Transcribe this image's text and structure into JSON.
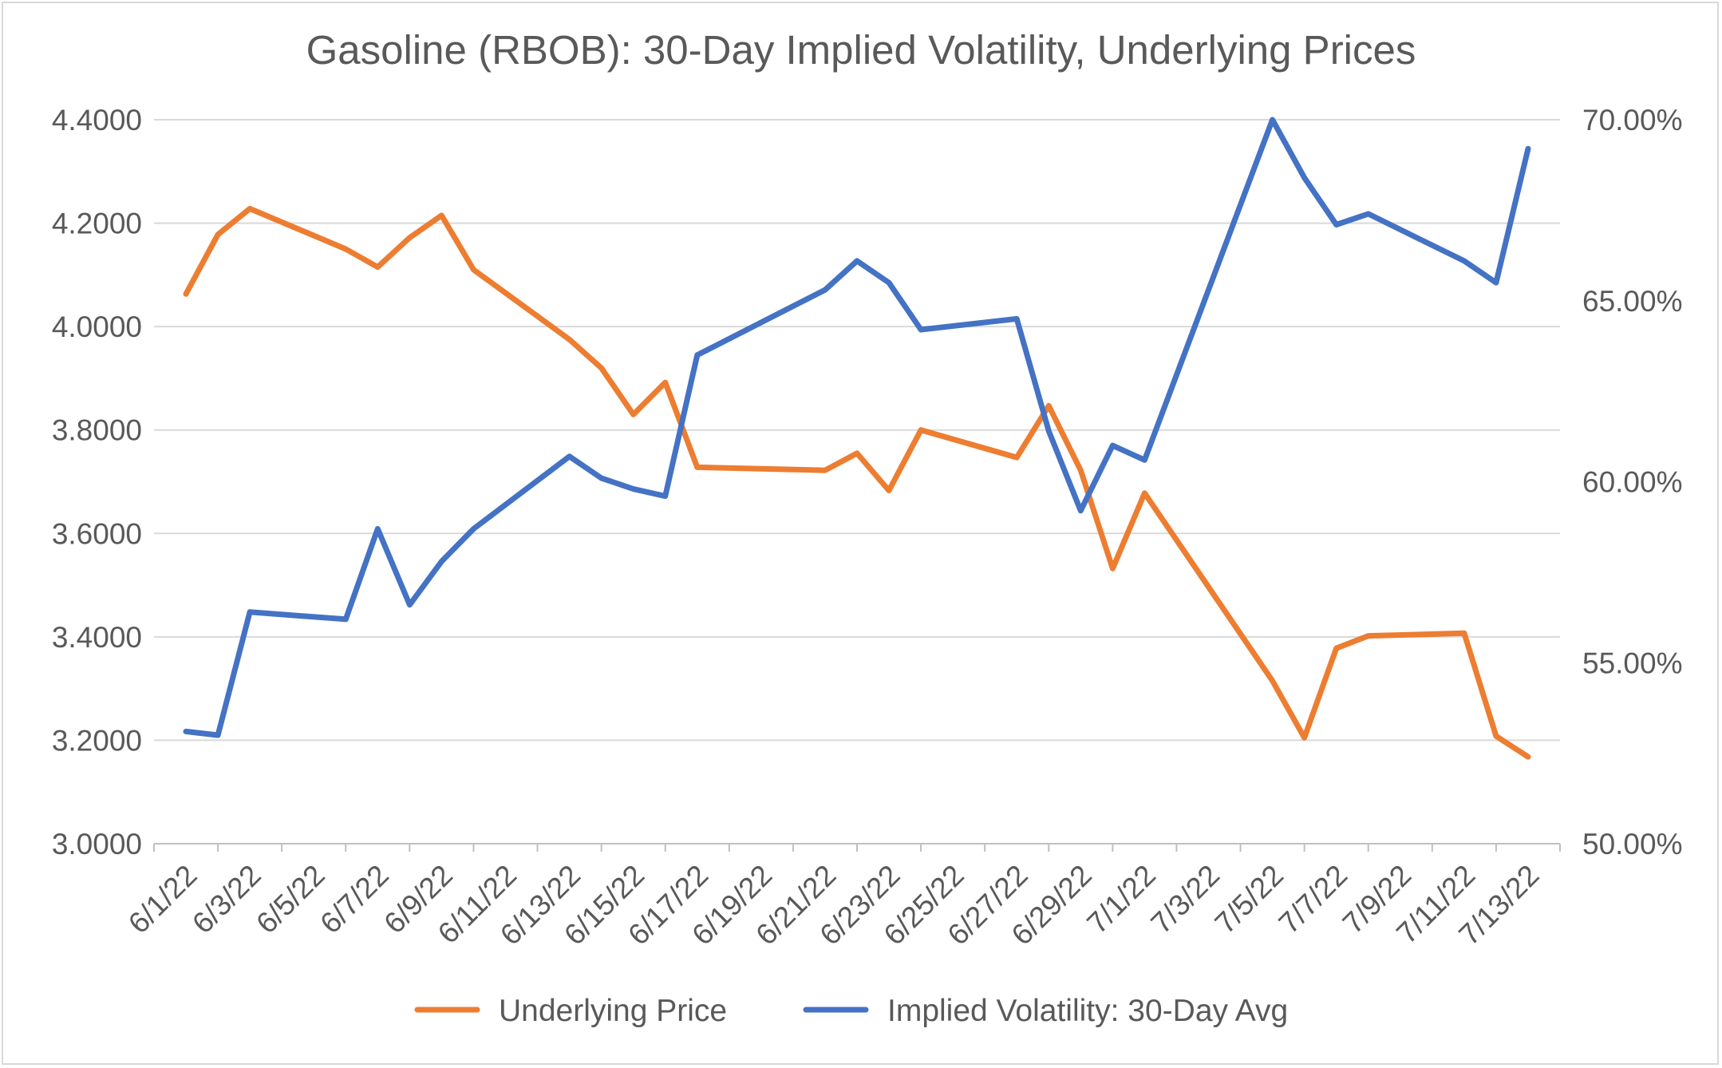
{
  "chart_data": {
    "type": "line",
    "title": "Gasoline (RBOB): 30-Day Implied Volatility, Underlying Prices",
    "xlabel": "",
    "ylabel": "",
    "y2label": "",
    "x_tick_labels": [
      "6/1/22",
      "6/3/22",
      "6/5/22",
      "6/7/22",
      "6/9/22",
      "6/11/22",
      "6/13/22",
      "6/15/22",
      "6/17/22",
      "6/19/22",
      "6/21/22",
      "6/23/22",
      "6/25/22",
      "6/27/22",
      "6/29/22",
      "7/1/22",
      "7/3/22",
      "7/5/22",
      "7/7/22",
      "7/9/22",
      "7/11/22",
      "7/13/22"
    ],
    "xlim": [
      "5/31/22",
      "7/14/22"
    ],
    "y_left": {
      "ylim": [
        3.0,
        4.4
      ],
      "ticks": [
        "3.0000",
        "3.2000",
        "3.4000",
        "3.6000",
        "3.8000",
        "4.0000",
        "4.2000",
        "4.4000"
      ]
    },
    "y_right": {
      "ylim": [
        50,
        70
      ],
      "ticks": [
        "50.00%",
        "55.00%",
        "60.00%",
        "65.00%",
        "70.00%"
      ]
    },
    "grid": true,
    "legend_position": "bottom",
    "series": [
      {
        "name": "Underlying Price",
        "axis": "left",
        "color": "#ED7D31",
        "points": [
          [
            "6/1/22",
            4.063
          ],
          [
            "6/2/22",
            4.178
          ],
          [
            "6/3/22",
            4.228
          ],
          [
            "6/6/22",
            4.15
          ],
          [
            "6/7/22",
            4.115
          ],
          [
            "6/8/22",
            4.172
          ],
          [
            "6/9/22",
            4.215
          ],
          [
            "6/10/22",
            4.11
          ],
          [
            "6/13/22",
            3.975
          ],
          [
            "6/14/22",
            3.92
          ],
          [
            "6/15/22",
            3.83
          ],
          [
            "6/16/22",
            3.892
          ],
          [
            "6/17/22",
            3.728
          ],
          [
            "6/21/22",
            3.722
          ],
          [
            "6/22/22",
            3.755
          ],
          [
            "6/23/22",
            3.683
          ],
          [
            "6/24/22",
            3.8
          ],
          [
            "6/27/22",
            3.747
          ],
          [
            "6/28/22",
            3.847
          ],
          [
            "6/29/22",
            3.722
          ],
          [
            "6/30/22",
            3.532
          ],
          [
            "7/1/22",
            3.678
          ],
          [
            "7/5/22",
            3.315
          ],
          [
            "7/6/22",
            3.205
          ],
          [
            "7/7/22",
            3.378
          ],
          [
            "7/8/22",
            3.402
          ],
          [
            "7/11/22",
            3.407
          ],
          [
            "7/12/22",
            3.208
          ],
          [
            "7/13/22",
            3.168
          ]
        ]
      },
      {
        "name": "Implied Volatility: 30-Day Avg",
        "axis": "right",
        "color": "#4472C4",
        "points": [
          [
            "6/1/22",
            53.1
          ],
          [
            "6/2/22",
            53.0
          ],
          [
            "6/3/22",
            56.4
          ],
          [
            "6/6/22",
            56.2
          ],
          [
            "6/7/22",
            58.7
          ],
          [
            "6/8/22",
            56.6
          ],
          [
            "6/9/22",
            57.8
          ],
          [
            "6/10/22",
            58.7
          ],
          [
            "6/13/22",
            60.7
          ],
          [
            "6/14/22",
            60.1
          ],
          [
            "6/15/22",
            59.8
          ],
          [
            "6/16/22",
            59.6
          ],
          [
            "6/17/22",
            63.5
          ],
          [
            "6/21/22",
            65.3
          ],
          [
            "6/22/22",
            66.1
          ],
          [
            "6/23/22",
            65.5
          ],
          [
            "6/24/22",
            64.2
          ],
          [
            "6/27/22",
            64.5
          ],
          [
            "6/28/22",
            61.4
          ],
          [
            "6/29/22",
            59.2
          ],
          [
            "6/30/22",
            61.0
          ],
          [
            "7/1/22",
            60.6
          ],
          [
            "7/5/22",
            70.0
          ],
          [
            "7/6/22",
            68.4
          ],
          [
            "7/7/22",
            67.1
          ],
          [
            "7/8/22",
            67.4
          ],
          [
            "7/11/22",
            66.1
          ],
          [
            "7/12/22",
            65.5
          ],
          [
            "7/13/22",
            69.2
          ]
        ]
      }
    ]
  }
}
